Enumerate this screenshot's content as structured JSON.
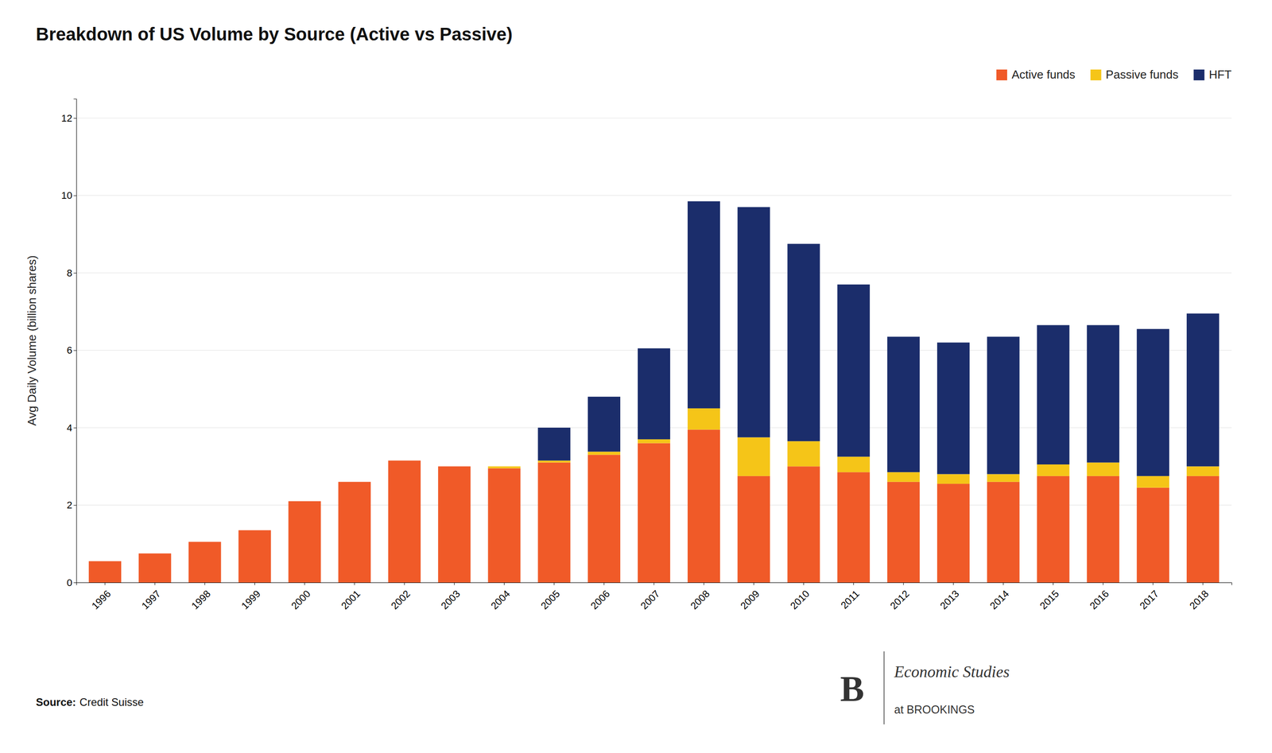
{
  "chart_data": {
    "type": "bar",
    "stacked": true,
    "title": "Breakdown of US Volume by Source (Active vs Passive)",
    "ylabel": "Avg Daily Volume (billion shares)",
    "categories": [
      "1996",
      "1997",
      "1998",
      "1999",
      "2000",
      "2001",
      "2002",
      "2003",
      "2004",
      "2005",
      "2006",
      "2007",
      "2008",
      "2009",
      "2010",
      "2011",
      "2012",
      "2013",
      "2014",
      "2015",
      "2016",
      "2017",
      "2018"
    ],
    "series": [
      {
        "name": "Active funds",
        "color": "#F05A28",
        "values": [
          0.55,
          0.75,
          1.05,
          1.35,
          2.1,
          2.6,
          3.15,
          3.0,
          2.95,
          3.1,
          3.3,
          3.6,
          3.95,
          2.75,
          3.0,
          2.85,
          2.6,
          2.55,
          2.6,
          2.75,
          2.75,
          2.45,
          2.75
        ]
      },
      {
        "name": "Passive funds",
        "color": "#F5C518",
        "values": [
          0.0,
          0.0,
          0.0,
          0.0,
          0.0,
          0.0,
          0.0,
          0.0,
          0.05,
          0.05,
          0.08,
          0.1,
          0.55,
          1.0,
          0.65,
          0.4,
          0.25,
          0.25,
          0.2,
          0.3,
          0.35,
          0.3,
          0.25
        ]
      },
      {
        "name": "HFT",
        "color": "#1B2D6B",
        "values": [
          0.0,
          0.0,
          0.0,
          0.0,
          0.0,
          0.0,
          0.0,
          0.0,
          0.0,
          0.85,
          1.42,
          2.35,
          5.35,
          5.95,
          5.1,
          4.45,
          3.5,
          3.4,
          3.55,
          3.6,
          3.55,
          3.8,
          3.95
        ]
      }
    ],
    "ylim": [
      0,
      12.5
    ],
    "yticks": [
      0,
      2,
      4,
      6,
      8,
      10,
      12
    ],
    "grid": true,
    "legend": "top-right",
    "annotations": [
      "Source:",
      "Credit Suisse",
      "B",
      "Economic Studies",
      "at BROOKINGS"
    ]
  }
}
